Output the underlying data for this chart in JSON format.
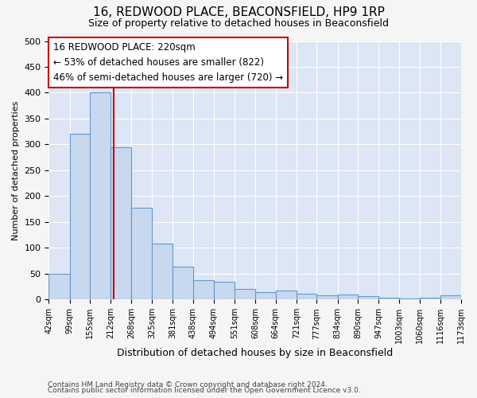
{
  "title1": "16, REDWOOD PLACE, BEACONSFIELD, HP9 1RP",
  "title2": "Size of property relative to detached houses in Beaconsfield",
  "xlabel": "Distribution of detached houses by size in Beaconsfield",
  "ylabel": "Number of detached properties",
  "footnote1": "Contains HM Land Registry data © Crown copyright and database right 2024.",
  "footnote2": "Contains public sector information licensed under the Open Government Licence v3.0.",
  "bar_edges": [
    42,
    99,
    155,
    212,
    268,
    325,
    381,
    438,
    494,
    551,
    608,
    664,
    721,
    777,
    834,
    890,
    947,
    1003,
    1060,
    1116,
    1173
  ],
  "bar_heights": [
    50,
    320,
    400,
    295,
    178,
    108,
    63,
    38,
    35,
    20,
    15,
    18,
    12,
    8,
    10,
    6,
    4,
    2,
    3,
    8
  ],
  "bar_color": "#c8d8ee",
  "bar_edge_color": "#6699cc",
  "property_size": 220,
  "red_line_color": "#cc0000",
  "annotation_text1": "16 REDWOOD PLACE: 220sqm",
  "annotation_text2": "← 53% of detached houses are smaller (822)",
  "annotation_text3": "46% of semi-detached houses are larger (720) →",
  "ylim": [
    0,
    500
  ],
  "xlim": [
    42,
    1173
  ],
  "background_color": "#dce6f5",
  "grid_color": "#ffffff",
  "fig_bg": "#f5f5f5"
}
